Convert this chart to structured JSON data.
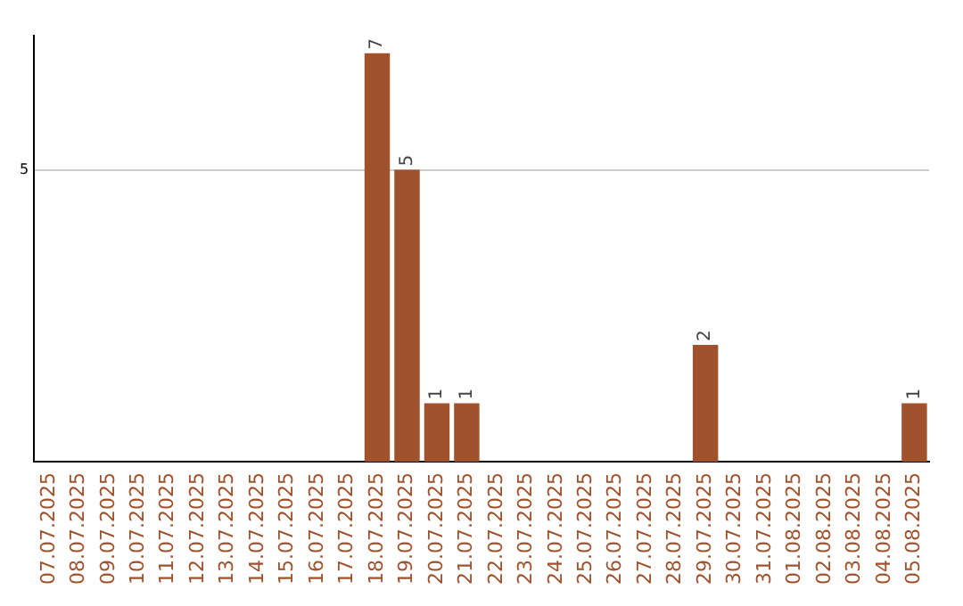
{
  "chart_data": {
    "type": "bar",
    "categories": [
      "07.07.2025",
      "08.07.2025",
      "09.07.2025",
      "10.07.2025",
      "11.07.2025",
      "12.07.2025",
      "13.07.2025",
      "14.07.2025",
      "15.07.2025",
      "16.07.2025",
      "17.07.2025",
      "18.07.2025",
      "19.07.2025",
      "20.07.2025",
      "21.07.2025",
      "22.07.2025",
      "23.07.2025",
      "24.07.2025",
      "25.07.2025",
      "26.07.2025",
      "27.07.2025",
      "28.07.2025",
      "29.07.2025",
      "30.07.2025",
      "31.07.2025",
      "01.08.2025",
      "02.08.2025",
      "03.08.2025",
      "04.08.2025",
      "05.08.2025"
    ],
    "values": [
      0,
      0,
      0,
      0,
      0,
      0,
      0,
      0,
      0,
      0,
      0,
      7,
      5,
      1,
      1,
      0,
      0,
      0,
      0,
      0,
      0,
      0,
      2,
      0,
      0,
      0,
      0,
      0,
      0,
      1
    ],
    "value_labels": [
      null,
      null,
      null,
      null,
      null,
      null,
      null,
      null,
      null,
      null,
      null,
      "7",
      "5",
      "1",
      "1",
      null,
      null,
      null,
      null,
      null,
      null,
      null,
      "2",
      null,
      null,
      null,
      null,
      null,
      null,
      "1"
    ],
    "color": "#a0522d",
    "ylim": [
      0,
      7.3
    ],
    "yticks": [
      5
    ],
    "grid": "y",
    "legend": false
  }
}
